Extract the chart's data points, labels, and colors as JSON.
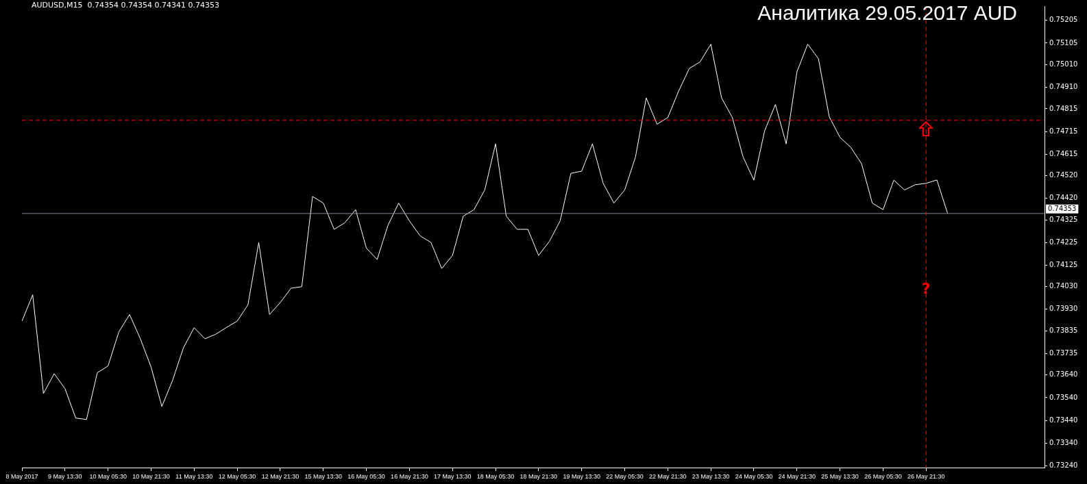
{
  "chart_data": {
    "type": "line",
    "title": "Аналитика 29.05.2017 AUD",
    "subtitle": "AUDUSD,M15  0.74354 0.74354 0.74341 0.74353",
    "categories": [
      "8 May 2017",
      null,
      null,
      null,
      "9 May 13:30",
      null,
      null,
      null,
      "10 May 05:30",
      null,
      null,
      null,
      "10 May 21:30",
      null,
      null,
      null,
      "11 May 13:30",
      null,
      null,
      null,
      "12 May 05:30",
      null,
      null,
      null,
      "12 May 21:30",
      null,
      null,
      null,
      "15 May 13:30",
      null,
      null,
      null,
      "16 May 05:30",
      null,
      null,
      null,
      "16 May 21:30",
      null,
      null,
      null,
      "17 May 13:30",
      null,
      null,
      null,
      "18 May 05:30",
      null,
      null,
      null,
      "18 May 21:30",
      null,
      null,
      null,
      "19 May 13:30",
      null,
      null,
      null,
      "22 May 05:30",
      null,
      null,
      null,
      "22 May 21:30",
      null,
      null,
      null,
      "23 May 13:30",
      null,
      null,
      null,
      "24 May 05:30",
      null,
      null,
      null,
      "24 May 21:30",
      null,
      null,
      null,
      "25 May 13:30",
      null,
      null,
      null,
      "26 May 05:30",
      null,
      null,
      null,
      "26 May 21:30",
      null,
      null,
      null,
      null,
      null,
      null,
      null,
      null,
      null,
      null,
      null
    ],
    "series": [
      {
        "color": "#ffffff",
        "values": [
          0.73878,
          0.73994,
          0.73559,
          0.73646,
          0.7358,
          0.7345,
          0.73444,
          0.7365,
          0.7368,
          0.7383,
          0.73907,
          0.738,
          0.73675,
          0.73501,
          0.73617,
          0.7376,
          0.73849,
          0.738,
          0.7382,
          0.7385,
          0.73878,
          0.7395,
          0.74225,
          0.73907,
          0.7396,
          0.74023,
          0.7403,
          0.74428,
          0.74399,
          0.74283,
          0.74312,
          0.7437,
          0.742,
          0.7415,
          0.743,
          0.74399,
          0.7432,
          0.74254,
          0.74225,
          0.7411,
          0.74168,
          0.74341,
          0.7437,
          0.74457,
          0.7466,
          0.74341,
          0.74283,
          0.74283,
          0.74168,
          0.7423,
          0.7432,
          0.7453,
          0.7454,
          0.7466,
          0.74486,
          0.74399,
          0.74457,
          0.74602,
          0.74863,
          0.74747,
          0.74776,
          0.74892,
          0.74993,
          0.75022,
          0.751,
          0.74863,
          0.74776,
          0.74602,
          0.745,
          0.74718,
          0.74834,
          0.7466,
          0.74978,
          0.751,
          0.75036,
          0.7478,
          0.74689,
          0.74645,
          0.74573,
          0.74399,
          0.7437,
          0.745,
          0.74457,
          0.7448,
          0.74486,
          0.74501,
          0.74353,
          null,
          null,
          null,
          null,
          null,
          null,
          null,
          null,
          null
        ]
      }
    ],
    "ylim": [
      0.73231,
      0.75268
    ],
    "yticks": [
      {
        "value": 0.7324,
        "label": "0.73240"
      },
      {
        "value": 0.7334,
        "label": "0.73340"
      },
      {
        "value": 0.7344,
        "label": "0.73440"
      },
      {
        "value": 0.7354,
        "label": "0.73540"
      },
      {
        "value": 0.7364,
        "label": "0.73640"
      },
      {
        "value": 0.73735,
        "label": "0.73735"
      },
      {
        "value": 0.73835,
        "label": "0.73835"
      },
      {
        "value": 0.7393,
        "label": "0.73930"
      },
      {
        "value": 0.7403,
        "label": "0.74030"
      },
      {
        "value": 0.74125,
        "label": "0.74125"
      },
      {
        "value": 0.74225,
        "label": "0.74225"
      },
      {
        "value": 0.74325,
        "label": "0.74325"
      },
      {
        "value": 0.7442,
        "label": "0.74420"
      },
      {
        "value": 0.7452,
        "label": "0.74520"
      },
      {
        "value": 0.74615,
        "label": "0.74615"
      },
      {
        "value": 0.74715,
        "label": "0.74715"
      },
      {
        "value": 0.74815,
        "label": "0.74815"
      },
      {
        "value": 0.7491,
        "label": "0.74910"
      },
      {
        "value": 0.7501,
        "label": "0.75010"
      },
      {
        "value": 0.75105,
        "label": "0.75105"
      },
      {
        "value": 0.75205,
        "label": "0.75205"
      }
    ],
    "ref_lines": [
      {
        "axis": "y",
        "value": 0.74353,
        "label": "0.74353",
        "color": "#7f8fa6",
        "line_style": "solid"
      },
      {
        "axis": "y",
        "value": 0.74764,
        "color": "#ff0000",
        "line_style": "dashed"
      },
      {
        "axis": "x",
        "value": "26 May 21:30",
        "color": "#ff0000",
        "line_style": "dashed"
      }
    ],
    "annotations": [
      {
        "text": "?",
        "x": "26 May 21:30",
        "y": 0.74017
      }
    ],
    "grid": false,
    "legend": false,
    "marker": "none",
    "line_style": "solid"
  }
}
